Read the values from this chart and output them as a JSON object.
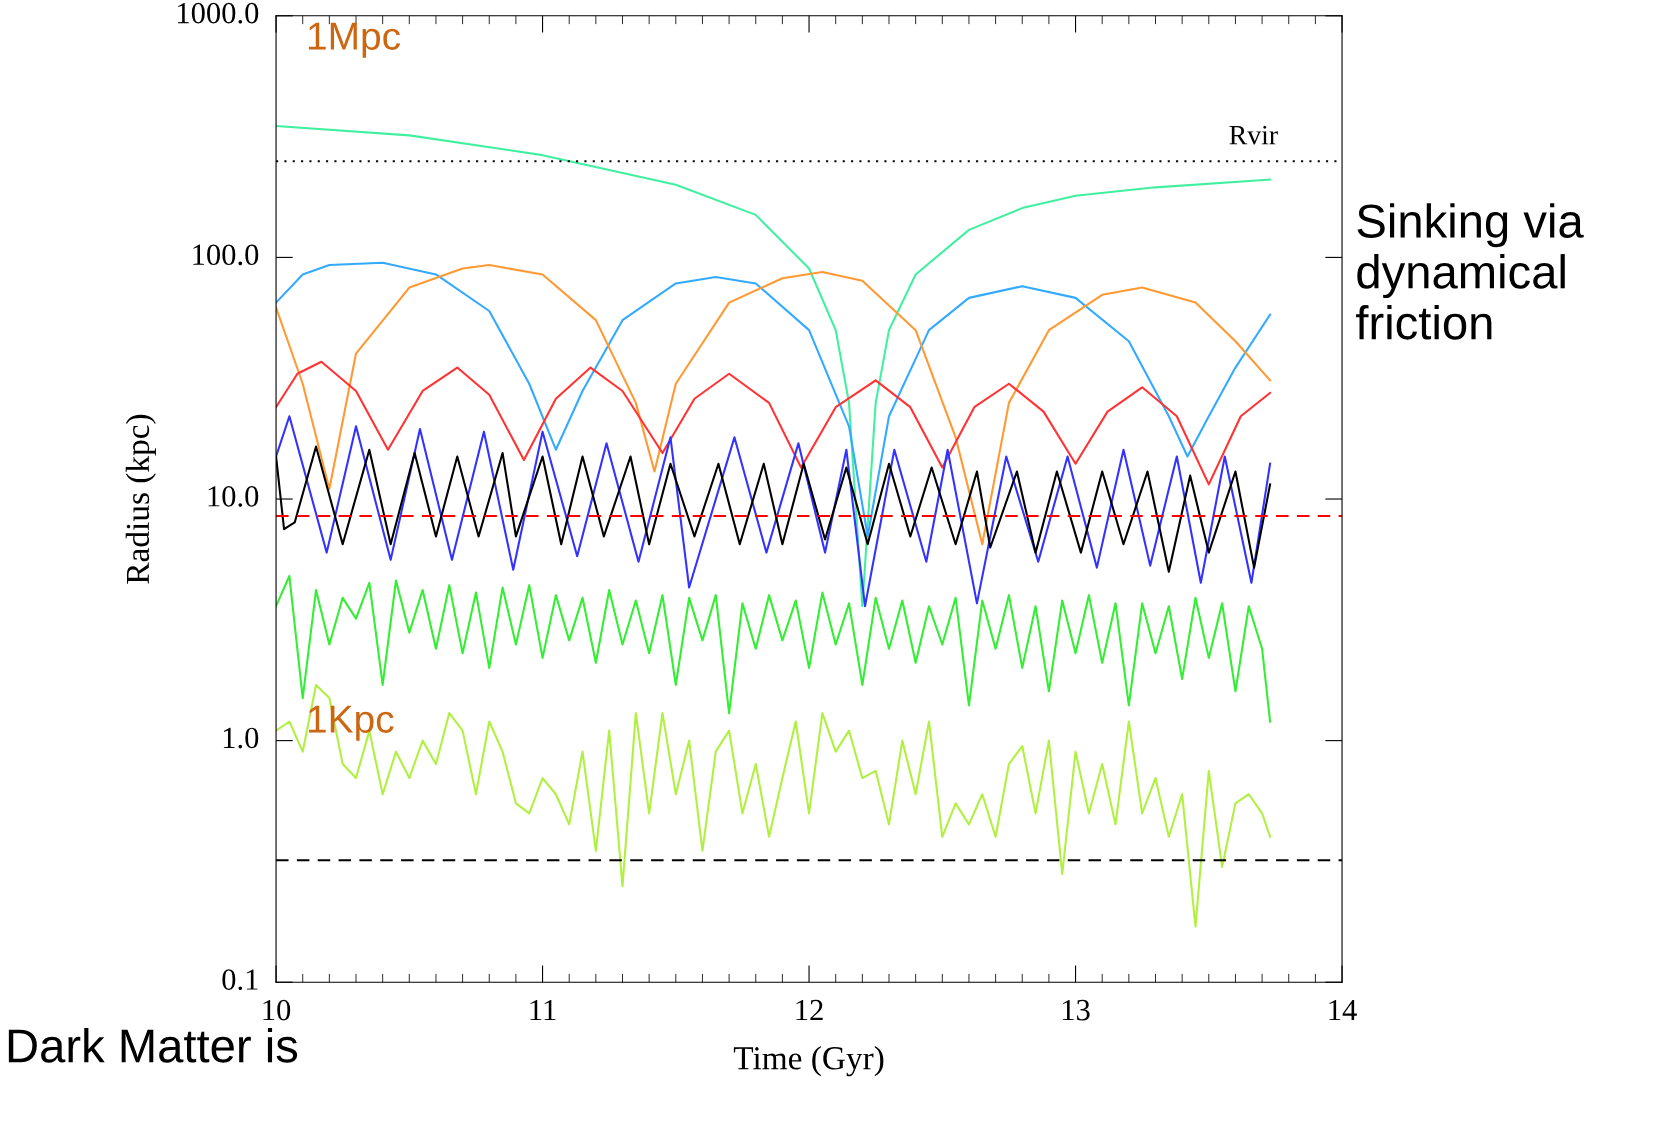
{
  "chart_data": {
    "type": "line",
    "xlabel": "Time (Gyr)",
    "ylabel": "Radius (kpc)",
    "xlim": [
      10,
      14
    ],
    "xticks": [
      10,
      11,
      12,
      13,
      14
    ],
    "ylim": [
      0.1,
      1000
    ],
    "yticks": [
      0.1,
      {
        "value": 1,
        "label": "1.0"
      },
      {
        "value": 10,
        "label": "10.0"
      },
      {
        "value": 100,
        "label": "100.0"
      },
      {
        "value": 1000,
        "label": "1000.0"
      }
    ],
    "log": "y",
    "grid": false,
    "legend": false,
    "marker": "none",
    "line_style": "solid",
    "series": [
      {
        "color": "#40f0a0",
        "x": [
          10,
          10.5,
          11,
          11.5,
          11.8,
          12,
          12.1,
          12.15,
          12.2,
          12.25,
          12.3,
          12.4,
          12.6,
          12.8,
          13.0,
          13.3,
          13.73
        ],
        "values": [
          350,
          320,
          265,
          200,
          150,
          90,
          50,
          25,
          3.6,
          25,
          50,
          85,
          130,
          160,
          180,
          195,
          210
        ]
      },
      {
        "color": "#33aaff",
        "x": [
          10,
          10.1,
          10.2,
          10.4,
          10.6,
          10.8,
          10.95,
          11.05,
          11.15,
          11.3,
          11.5,
          11.65,
          11.8,
          12.0,
          12.15,
          12.22,
          12.3,
          12.45,
          12.6,
          12.8,
          13.0,
          13.2,
          13.35,
          13.42,
          13.5,
          13.6,
          13.73
        ],
        "values": [
          65,
          85,
          93,
          95,
          85,
          60,
          30,
          16,
          28,
          55,
          78,
          83,
          78,
          50,
          20,
          7,
          22,
          50,
          68,
          76,
          68,
          45,
          22,
          15,
          22,
          35,
          58
        ]
      },
      {
        "color": "#ff9933",
        "x": [
          10,
          10.1,
          10.2,
          10.3,
          10.5,
          10.7,
          10.8,
          11.0,
          11.2,
          11.35,
          11.42,
          11.5,
          11.7,
          11.9,
          12.05,
          12.2,
          12.4,
          12.55,
          12.65,
          12.75,
          12.9,
          13.1,
          13.25,
          13.45,
          13.6,
          13.73
        ],
        "values": [
          62,
          30,
          11,
          40,
          75,
          90,
          93,
          85,
          55,
          25,
          13,
          30,
          65,
          82,
          87,
          80,
          50,
          18,
          6.5,
          25,
          50,
          70,
          75,
          65,
          45,
          31
        ]
      },
      {
        "color": "#ff3333",
        "x": [
          10,
          10.08,
          10.17,
          10.3,
          10.42,
          10.55,
          10.68,
          10.8,
          10.93,
          11.05,
          11.18,
          11.3,
          11.45,
          11.57,
          11.7,
          11.85,
          11.97,
          12.1,
          12.25,
          12.38,
          12.5,
          12.62,
          12.75,
          12.88,
          13.0,
          13.12,
          13.25,
          13.38,
          13.5,
          13.62,
          13.73
        ],
        "values": [
          24,
          33,
          37,
          28,
          16,
          28,
          35,
          27,
          14.5,
          26,
          35,
          28,
          15.5,
          26,
          33,
          25,
          13.5,
          24,
          31,
          24,
          13.5,
          24,
          30,
          23,
          14,
          23,
          29,
          22,
          11.5,
          22,
          27.5
        ]
      },
      {
        "color": "#3333ff",
        "x": [
          10,
          10.05,
          10.19,
          10.3,
          10.43,
          10.54,
          10.66,
          10.78,
          10.89,
          11.0,
          11.13,
          11.24,
          11.36,
          11.48,
          11.55,
          11.72,
          11.84,
          11.96,
          12.06,
          12.14,
          12.21,
          12.32,
          12.44,
          12.52,
          12.63,
          12.74,
          12.86,
          12.97,
          13.08,
          13.18,
          13.28,
          13.38,
          13.47,
          13.56,
          13.66,
          13.73
        ],
        "values": [
          15,
          22,
          6,
          20,
          5.6,
          19.5,
          5.6,
          19,
          5.1,
          19,
          5.8,
          17,
          5.5,
          18,
          4.3,
          18,
          6,
          17,
          6,
          16,
          3.6,
          16,
          5.5,
          16,
          3.7,
          15,
          5.5,
          15,
          5.2,
          16,
          5.3,
          15,
          4.5,
          15,
          4.5,
          14
        ]
      },
      {
        "color": "#000000",
        "x": [
          10,
          10.03,
          10.07,
          10.15,
          10.25,
          10.35,
          10.43,
          10.52,
          10.6,
          10.68,
          10.76,
          10.85,
          10.9,
          11.0,
          11.07,
          11.15,
          11.23,
          11.33,
          11.4,
          11.48,
          11.57,
          11.66,
          11.74,
          11.83,
          11.9,
          11.98,
          12.06,
          12.14,
          12.22,
          12.3,
          12.38,
          12.46,
          12.55,
          12.63,
          12.68,
          12.78,
          12.85,
          12.93,
          13.02,
          13.1,
          13.18,
          13.27,
          13.35,
          13.43,
          13.5,
          13.6,
          13.67,
          13.73
        ],
        "values": [
          15,
          7.5,
          8,
          16.5,
          6.5,
          16,
          6.5,
          15.5,
          7,
          15,
          7,
          15.5,
          7,
          15,
          6.5,
          15,
          7,
          15,
          6.5,
          14,
          7,
          14,
          6.5,
          14,
          6.5,
          14,
          6.8,
          13.5,
          6.5,
          14,
          7,
          13.5,
          6.5,
          13,
          6.3,
          13,
          6,
          13,
          6,
          13,
          6.5,
          13,
          5,
          12.5,
          6,
          13,
          5.2,
          11.5
        ]
      },
      {
        "color": "#33ee33",
        "x": [
          10.0,
          10.05,
          10.1,
          10.15,
          10.2,
          10.25,
          10.3,
          10.35,
          10.4,
          10.45,
          10.5,
          10.55,
          10.6,
          10.65,
          10.7,
          10.75,
          10.8,
          10.85,
          10.9,
          10.95,
          11.0,
          11.05,
          11.1,
          11.15,
          11.2,
          11.25,
          11.3,
          11.35,
          11.4,
          11.45,
          11.5,
          11.55,
          11.6,
          11.65,
          11.7,
          11.75,
          11.8,
          11.85,
          11.9,
          11.95,
          12.0,
          12.05,
          12.1,
          12.15,
          12.2,
          12.25,
          12.3,
          12.35,
          12.4,
          12.45,
          12.5,
          12.55,
          12.6,
          12.65,
          12.7,
          12.75,
          12.8,
          12.85,
          12.9,
          12.95,
          13.0,
          13.05,
          13.1,
          13.15,
          13.2,
          13.25,
          13.3,
          13.35,
          13.4,
          13.45,
          13.5,
          13.55,
          13.6,
          13.65,
          13.7,
          13.73
        ],
        "values": [
          3.6,
          4.8,
          1.5,
          4.2,
          2.5,
          3.9,
          3.2,
          4.5,
          1.7,
          4.6,
          2.8,
          4.2,
          2.4,
          4.4,
          2.3,
          4.1,
          2.0,
          4.3,
          2.5,
          4.4,
          2.2,
          4.0,
          2.6,
          3.9,
          2.1,
          4.2,
          2.5,
          3.8,
          2.3,
          4.0,
          1.7,
          3.9,
          2.6,
          4.0,
          1.3,
          3.7,
          2.4,
          4.0,
          2.6,
          3.8,
          2.0,
          4.1,
          2.5,
          3.7,
          1.7,
          3.9,
          2.4,
          3.8,
          2.1,
          3.6,
          2.5,
          3.9,
          1.4,
          3.8,
          2.4,
          4.0,
          2.0,
          3.6,
          1.6,
          3.8,
          2.3,
          4.0,
          2.1,
          3.7,
          1.4,
          3.7,
          2.3,
          3.6,
          1.8,
          3.9,
          2.2,
          3.7,
          1.6,
          3.6,
          2.4,
          1.2
        ]
      },
      {
        "color": "#b0f040",
        "x": [
          10.0,
          10.05,
          10.1,
          10.15,
          10.2,
          10.25,
          10.3,
          10.35,
          10.4,
          10.45,
          10.5,
          10.55,
          10.6,
          10.65,
          10.7,
          10.75,
          10.8,
          10.85,
          10.9,
          10.95,
          11.0,
          11.05,
          11.1,
          11.15,
          11.2,
          11.25,
          11.3,
          11.35,
          11.4,
          11.45,
          11.5,
          11.55,
          11.6,
          11.65,
          11.7,
          11.75,
          11.8,
          11.85,
          11.9,
          11.95,
          12.0,
          12.05,
          12.1,
          12.15,
          12.2,
          12.25,
          12.3,
          12.35,
          12.4,
          12.45,
          12.5,
          12.55,
          12.6,
          12.65,
          12.7,
          12.75,
          12.8,
          12.85,
          12.9,
          12.95,
          13.0,
          13.05,
          13.1,
          13.15,
          13.2,
          13.25,
          13.3,
          13.35,
          13.4,
          13.45,
          13.5,
          13.55,
          13.6,
          13.65,
          13.7,
          13.73
        ],
        "values": [
          1.1,
          1.2,
          0.9,
          1.7,
          1.5,
          0.8,
          0.7,
          1.1,
          0.6,
          0.9,
          0.7,
          1.0,
          0.8,
          1.3,
          1.1,
          0.6,
          1.2,
          0.9,
          0.55,
          0.5,
          0.7,
          0.6,
          0.45,
          0.9,
          0.35,
          1.1,
          0.25,
          1.3,
          0.5,
          1.3,
          0.6,
          1.0,
          0.35,
          0.9,
          1.1,
          0.5,
          0.8,
          0.4,
          0.7,
          1.2,
          0.5,
          1.3,
          0.9,
          1.1,
          0.7,
          0.75,
          0.45,
          1.0,
          0.6,
          1.2,
          0.4,
          0.55,
          0.45,
          0.6,
          0.4,
          0.8,
          0.95,
          0.5,
          1.0,
          0.28,
          0.9,
          0.5,
          0.8,
          0.45,
          1.2,
          0.5,
          0.7,
          0.4,
          0.6,
          0.17,
          0.75,
          0.3,
          0.55,
          0.6,
          0.5,
          0.4
        ]
      }
    ],
    "ref_lines": [
      {
        "axis": "y",
        "value": 250,
        "label": "Rvir",
        "color": "#000000",
        "line_style": "dotted"
      },
      {
        "axis": "y",
        "value": 8.5,
        "color": "#ff0000",
        "line_style": "dashed"
      },
      {
        "axis": "y",
        "value": 0.32,
        "color": "#000000",
        "line_style": "dashed"
      }
    ],
    "annotations": [
      "1Mpc",
      "1Kpc",
      "Sinking via dynamical friction",
      "Dark Matter is"
    ]
  }
}
